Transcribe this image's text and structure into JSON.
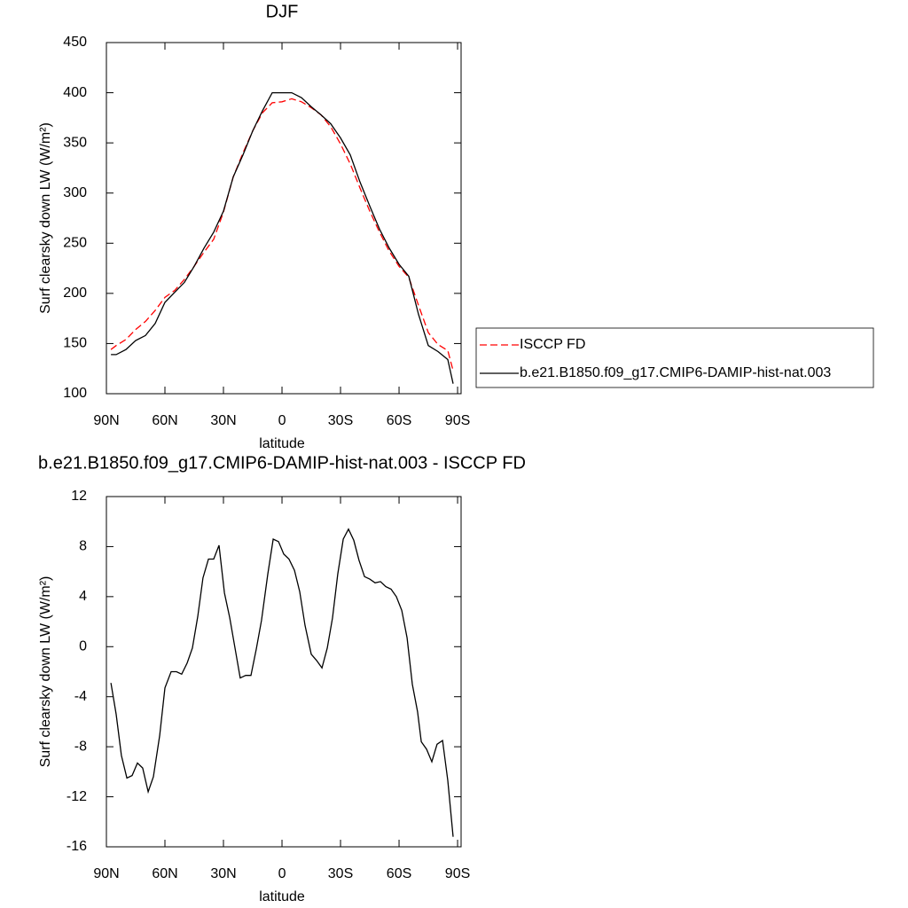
{
  "chart_data": [
    {
      "type": "line",
      "title": "DJF",
      "xlabel": "latitude",
      "ylabel": "Surf clearsky down LW (W/m²)",
      "x": [
        87.7,
        85,
        80,
        75,
        70,
        65,
        60,
        55,
        50,
        45,
        40,
        35,
        30,
        25,
        20,
        15,
        10,
        5,
        0,
        -5,
        -10,
        -15,
        -20,
        -25,
        -30,
        -35,
        -40,
        -45,
        -50,
        -55,
        -60,
        -65,
        -70,
        -75,
        -80,
        -85,
        -87.7
      ],
      "series": [
        {
          "name": "ISCCP FD",
          "color": "#ff0000",
          "dashed": true,
          "values": [
            144,
            148,
            154,
            164,
            172,
            183,
            196,
            203,
            214,
            227,
            241,
            254,
            281,
            316,
            340,
            362,
            380,
            390,
            391,
            394,
            391,
            385,
            378,
            366,
            349,
            329,
            305,
            282,
            261,
            242,
            227,
            216,
            188,
            161,
            149,
            143,
            123
          ]
        },
        {
          "name": "b.e21.B1850.f09_g17.CMIP6-DAMIP-hist-nat.003",
          "color": "#000000",
          "dashed": false,
          "values": [
            139,
            139,
            144,
            153,
            158,
            170,
            191,
            201,
            211,
            227,
            245,
            261,
            282,
            316,
            338,
            362,
            382,
            400,
            400,
            400,
            395,
            386,
            378,
            369,
            355,
            338,
            311,
            287,
            264,
            245,
            229,
            217,
            179,
            148,
            142,
            134,
            110
          ]
        }
      ],
      "xlim": [
        90,
        -91.8
      ],
      "xticks": [
        {
          "value": 90,
          "label": "90N"
        },
        {
          "value": 60,
          "label": "60N"
        },
        {
          "value": 30,
          "label": "30N"
        },
        0,
        {
          "value": -30,
          "label": "30S"
        },
        {
          "value": -60,
          "label": "60S"
        },
        {
          "value": -90,
          "label": "90S"
        }
      ],
      "ylim": [
        100,
        450
      ],
      "yticks": [
        100,
        150,
        200,
        250,
        300,
        350,
        400,
        450
      ],
      "legend": "right"
    },
    {
      "type": "line",
      "title": "b.e21.B1850.f09_g17.CMIP6-DAMIP-hist-nat.003 - ISCCP FD",
      "xlabel": "latitude",
      "ylabel": "Surf clearsky down LW (W/m²)",
      "x": [
        87.7,
        85.0,
        82.3,
        79.5,
        76.8,
        74.1,
        71.4,
        68.6,
        65.9,
        62.7,
        60.0,
        56.8,
        54.1,
        51.4,
        48.6,
        45.9,
        43.2,
        40.5,
        37.7,
        35.0,
        32.3,
        29.5,
        26.8,
        24.1,
        21.4,
        18.6,
        15.9,
        13.2,
        10.5,
        7.3,
        4.5,
        1.8,
        -0.9,
        -3.6,
        -6.4,
        -9.1,
        -11.8,
        -15.0,
        -17.7,
        -20.5,
        -23.2,
        -25.9,
        -28.6,
        -31.4,
        -34.1,
        -36.8,
        -39.5,
        -42.3,
        -45.0,
        -47.7,
        -50.5,
        -53.2,
        -55.9,
        -58.6,
        -61.4,
        -64.1,
        -66.8,
        -69.5,
        -71.4,
        -74.1,
        -76.8,
        -79.5,
        -82.3,
        -85.0,
        -87.7
      ],
      "series": [
        {
          "color": "#000000",
          "dashed": false,
          "values": [
            -2.9,
            -5.4,
            -8.7,
            -10.5,
            -10.3,
            -9.3,
            -9.7,
            -11.6,
            -10.4,
            -7.1,
            -3.3,
            -2.0,
            -2.0,
            -2.2,
            -1.3,
            -0.1,
            2.4,
            5.5,
            7.0,
            7.0,
            8.1,
            4.3,
            2.3,
            -0.1,
            -2.5,
            -2.3,
            -2.3,
            -0.2,
            2.1,
            5.8,
            8.6,
            8.4,
            7.4,
            7.0,
            6.1,
            4.4,
            1.7,
            -0.6,
            -1.1,
            -1.7,
            -0.1,
            2.3,
            5.8,
            8.6,
            9.4,
            8.5,
            6.9,
            5.6,
            5.4,
            5.1,
            5.2,
            4.8,
            4.6,
            4.0,
            2.9,
            0.7,
            -3.0,
            -5.2,
            -7.6,
            -8.2,
            -9.2,
            -7.8,
            -7.5,
            -10.7,
            -15.2
          ]
        }
      ],
      "xlim": [
        90,
        -91.8
      ],
      "xticks": [
        {
          "value": 90,
          "label": "90N"
        },
        {
          "value": 60,
          "label": "60N"
        },
        {
          "value": 30,
          "label": "30N"
        },
        0,
        {
          "value": -30,
          "label": "30S"
        },
        {
          "value": -60,
          "label": "60S"
        },
        {
          "value": -90,
          "label": "90S"
        }
      ],
      "ylim": [
        -16,
        12
      ],
      "yticks": [
        -16,
        -12,
        -8,
        -4,
        0,
        4,
        8,
        12
      ]
    }
  ]
}
